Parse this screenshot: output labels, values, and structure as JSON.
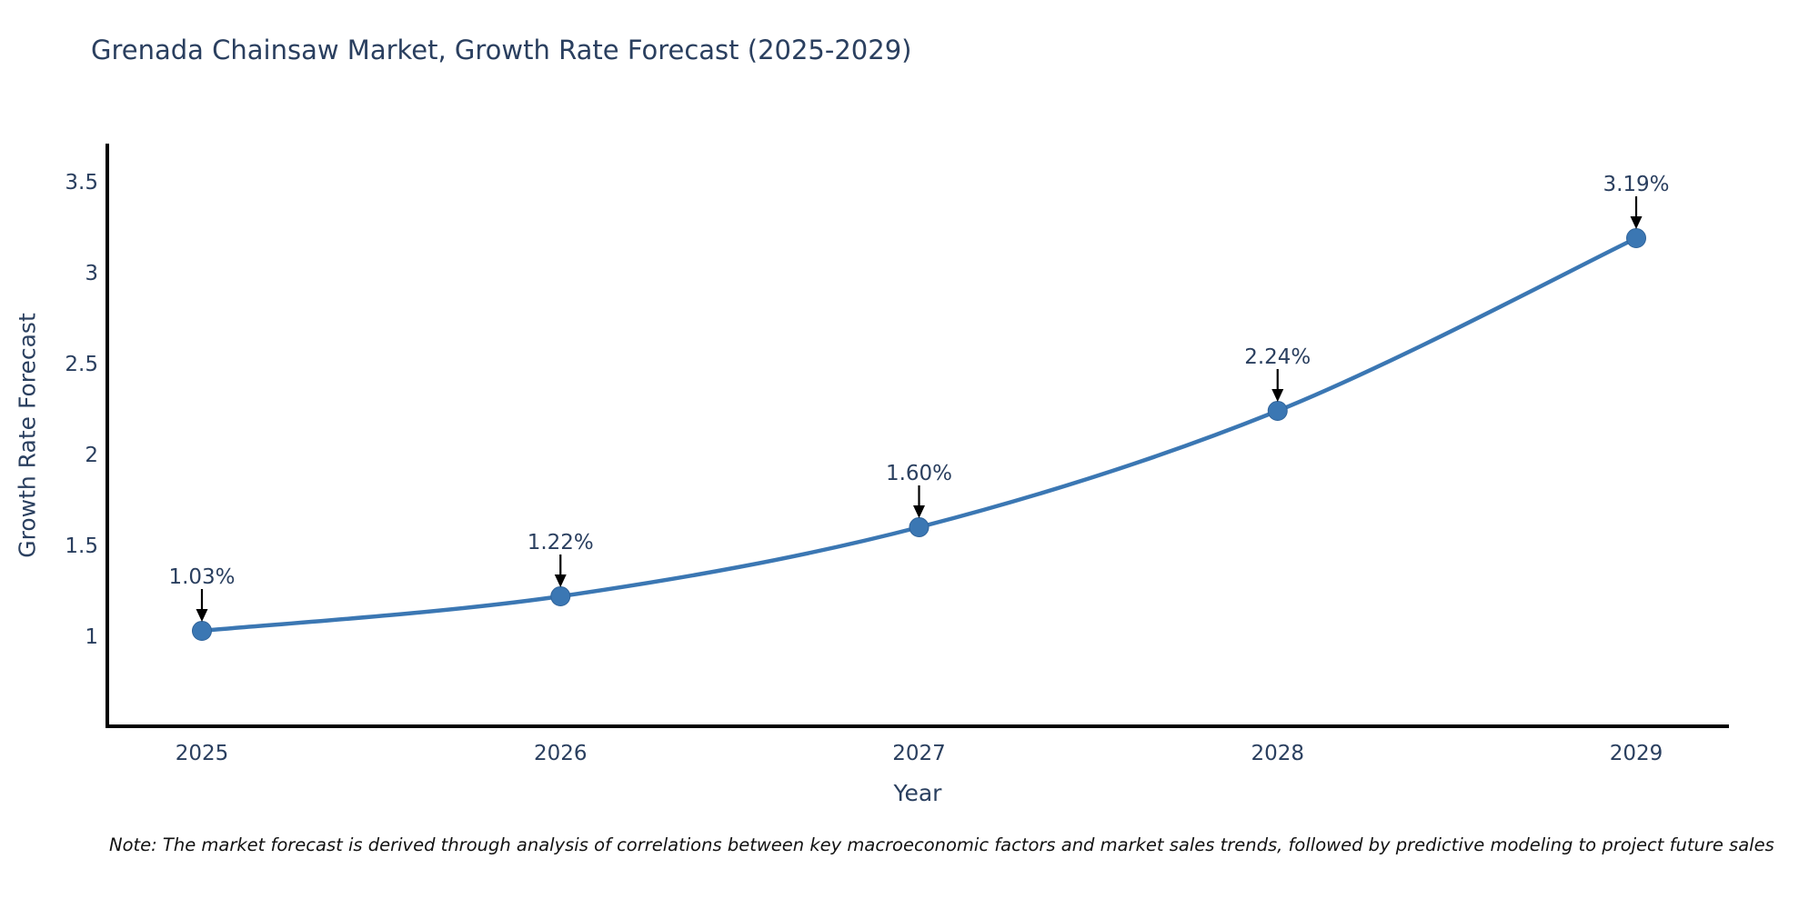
{
  "chart_data": {
    "type": "line",
    "title": "Grenada Chainsaw Market, Growth Rate Forecast (2025-2029)",
    "xlabel": "Year",
    "ylabel": "Growth Rate Forecast",
    "categories": [
      "2025",
      "2026",
      "2027",
      "2028",
      "2029"
    ],
    "values": [
      1.03,
      1.22,
      1.6,
      2.24,
      3.19
    ],
    "point_labels": [
      "1.03%",
      "1.22%",
      "1.60%",
      "2.24%",
      "3.19%"
    ],
    "yticks": [
      "3.5",
      "3",
      "2.5",
      "2",
      "1.5",
      "1"
    ],
    "ytick_values": [
      3.5,
      3,
      2.5,
      2,
      1.5,
      1
    ],
    "ylim": [
      0.5,
      3.7
    ],
    "grid": false,
    "legend_position": "none",
    "line_color": "#3b77b3",
    "marker_color": "#3b77b3",
    "marker_edge_color": "#2f639a",
    "axis_line_color": "#000000",
    "annotation_arrow_color": "#000000",
    "text_color": "#2a3f5f"
  },
  "footnote": "Note: The market forecast is derived through analysis of correlations between key macroeconomic factors and market sales trends, followed by predictive modeling to project future sales"
}
